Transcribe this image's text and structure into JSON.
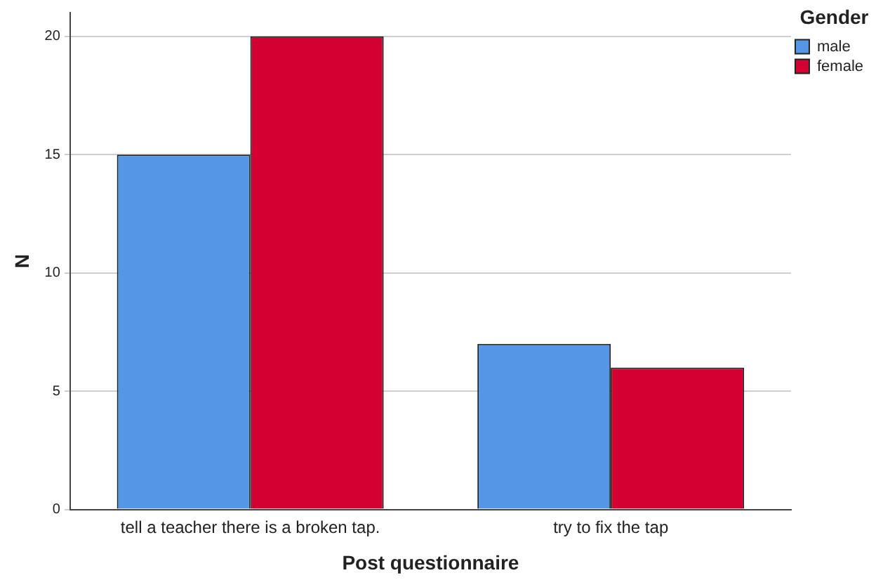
{
  "chart_data": {
    "type": "bar",
    "categories": [
      "tell a teacher there is a broken tap.",
      "try to fix the tap"
    ],
    "series": [
      {
        "name": "male",
        "color": "#5596e6",
        "values": [
          15,
          7
        ]
      },
      {
        "name": "female",
        "color": "#d50032",
        "values": [
          20,
          6
        ]
      }
    ],
    "xlabel": "Post questionnaire",
    "ylabel": "N",
    "legend_title": "Gender",
    "legend": "top right",
    "ylim": [
      0,
      21
    ],
    "yticks": [
      0,
      5,
      10,
      15,
      20
    ],
    "grid": "y"
  }
}
